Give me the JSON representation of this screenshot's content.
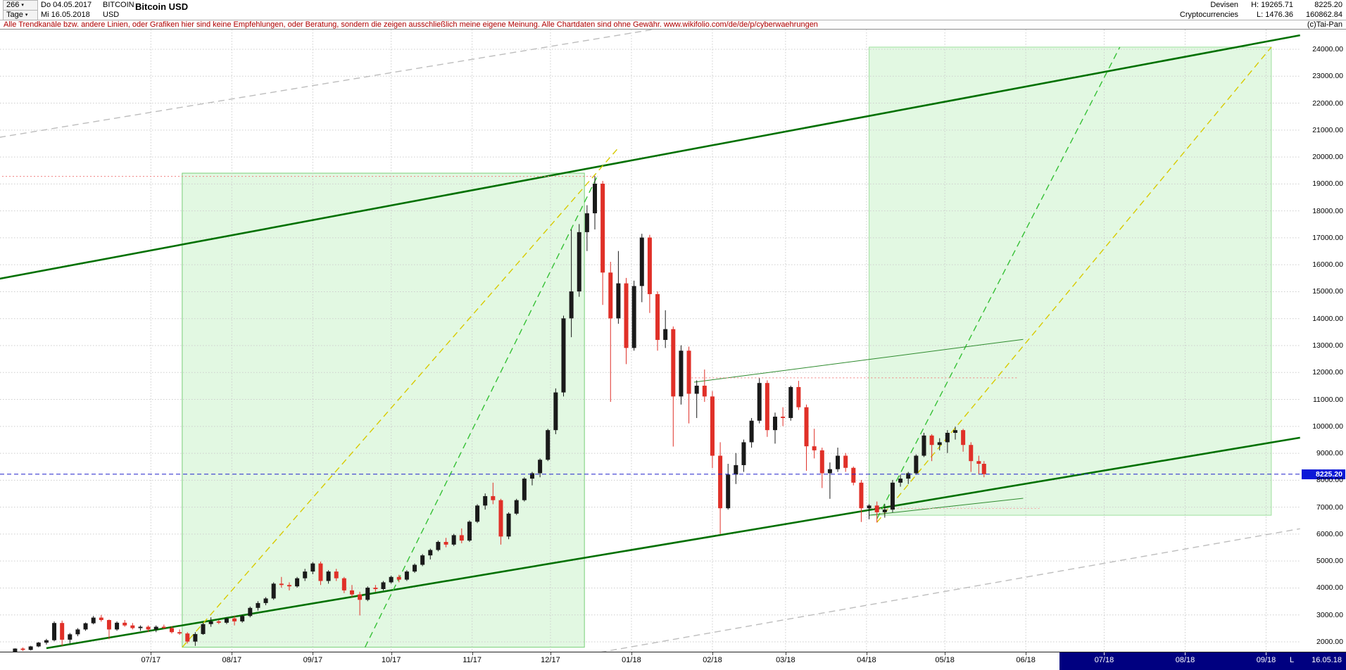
{
  "header": {
    "bars_count": "266",
    "dropdown_icon": "▾",
    "date_from": "Do 04.05.2017",
    "symbol": "BITCOIN",
    "period_label": "Tage",
    "date_to": "Mi 16.05.2018",
    "currency": "USD",
    "title": "Bitcoin USD",
    "category_line1": "Devisen",
    "category_line2": "Cryptocurrencies",
    "high_label": "H: 19265.71",
    "low_label": "L: 1476.36",
    "last_price": "8225.20",
    "volume": "160862.84"
  },
  "disclaimer": {
    "text": "Alle Trendkanäle bzw. andere Linien, oder Grafiken hier sind keine Empfehlungen, oder Beratung, sondern die zeigen ausschließlich meine eigene Meinung. Alle Chartdaten sind ohne Gewähr.  www.wikifolio.com/de/de/p/cyberwaehrungen",
    "copyright": "(c)Tai-Pan"
  },
  "price_axis": {
    "labels": [
      "24000.00",
      "23000.00",
      "22000.00",
      "21000.00",
      "20000.00",
      "19000.00",
      "18000.00",
      "17000.00",
      "16000.00",
      "15000.00",
      "14000.00",
      "13000.00",
      "12000.00",
      "11000.00",
      "10000.00",
      "9000.00",
      "8000.00",
      "7000.00",
      "6000.00",
      "5000.00",
      "4000.00",
      "3000.00",
      "2000.00"
    ],
    "badge": "8225.20",
    "badge_value": 8225.2,
    "badge_color": "#0b18d8"
  },
  "time_axis": {
    "months": [
      {
        "label": "07/17",
        "day": 61
      },
      {
        "label": "08/17",
        "day": 92
      },
      {
        "label": "09/17",
        "day": 123
      },
      {
        "label": "10/17",
        "day": 153
      },
      {
        "label": "11/17",
        "day": 184
      },
      {
        "label": "12/17",
        "day": 214
      },
      {
        "label": "01/18",
        "day": 245
      },
      {
        "label": "02/18",
        "day": 276
      },
      {
        "label": "03/18",
        "day": 304
      },
      {
        "label": "04/18",
        "day": 335
      },
      {
        "label": "05/18",
        "day": 365
      },
      {
        "label": "06/18",
        "day": 396
      },
      {
        "label": "07/18",
        "day": 426
      },
      {
        "label": "08/18",
        "day": 457
      },
      {
        "label": "09/18",
        "day": 488
      }
    ],
    "future_strip_start_day": 409,
    "strip_color": "#000080",
    "last_marker": "L",
    "last_date_label": "16.05.18"
  },
  "chart_data": {
    "type": "candlestick",
    "title": "Bitcoin USD",
    "timeframe": "Tage (daily)",
    "x_unit": "days since 2017-05-01",
    "date_range": [
      "04.05.2017",
      "16.05.2018"
    ],
    "ylim": [
      1476.36,
      24000
    ],
    "period_high": 19265.71,
    "period_low": 1476.36,
    "last_close": 8225.2,
    "grid": true,
    "up_color": "#1a1a1a",
    "down_color": "#e03028",
    "candles": [
      [
        3,
        1500,
        1560,
        1476,
        1540
      ],
      [
        6,
        1540,
        1620,
        1500,
        1600
      ],
      [
        9,
        1600,
        1760,
        1580,
        1750
      ],
      [
        12,
        1750,
        1790,
        1660,
        1700
      ],
      [
        15,
        1700,
        1850,
        1680,
        1830
      ],
      [
        18,
        1830,
        2000,
        1800,
        1970
      ],
      [
        21,
        1970,
        2110,
        1900,
        2060
      ],
      [
        24,
        2060,
        2760,
        2020,
        2700
      ],
      [
        27,
        2700,
        2790,
        1850,
        2080
      ],
      [
        30,
        2080,
        2330,
        1950,
        2280
      ],
      [
        33,
        2280,
        2510,
        2210,
        2460
      ],
      [
        36,
        2460,
        2720,
        2410,
        2690
      ],
      [
        39,
        2690,
        2960,
        2650,
        2900
      ],
      [
        42,
        2900,
        3000,
        2750,
        2810
      ],
      [
        45,
        2810,
        2830,
        2100,
        2460
      ],
      [
        48,
        2460,
        2760,
        2410,
        2710
      ],
      [
        51,
        2710,
        2810,
        2560,
        2610
      ],
      [
        54,
        2610,
        2700,
        2460,
        2510
      ],
      [
        57,
        2510,
        2610,
        2410,
        2560
      ],
      [
        60,
        2560,
        2610,
        2360,
        2460
      ],
      [
        63,
        2460,
        2610,
        2360,
        2560
      ],
      [
        66,
        2560,
        2640,
        2480,
        2510
      ],
      [
        69,
        2510,
        2580,
        2310,
        2360
      ],
      [
        72,
        2360,
        2460,
        2260,
        2310
      ],
      [
        75,
        2310,
        2360,
        1940,
        2010
      ],
      [
        78,
        2010,
        2360,
        1850,
        2290
      ],
      [
        81,
        2290,
        2710,
        2260,
        2660
      ],
      [
        84,
        2660,
        2910,
        2560,
        2760
      ],
      [
        87,
        2760,
        2810,
        2660,
        2710
      ],
      [
        90,
        2710,
        2910,
        2660,
        2870
      ],
      [
        93,
        2870,
        2960,
        2610,
        2760
      ],
      [
        96,
        2760,
        3010,
        2710,
        2960
      ],
      [
        99,
        2960,
        3310,
        2910,
        3260
      ],
      [
        102,
        3260,
        3510,
        3160,
        3440
      ],
      [
        105,
        3440,
        3660,
        3360,
        3610
      ],
      [
        108,
        3610,
        4210,
        3560,
        4160
      ],
      [
        111,
        4160,
        4410,
        4010,
        4110
      ],
      [
        114,
        4110,
        4210,
        3910,
        4060
      ],
      [
        117,
        4060,
        4410,
        4010,
        4360
      ],
      [
        120,
        4360,
        4710,
        4260,
        4610
      ],
      [
        123,
        4610,
        4960,
        4510,
        4910
      ],
      [
        126,
        4910,
        4980,
        4110,
        4260
      ],
      [
        129,
        4260,
        4660,
        4160,
        4610
      ],
      [
        132,
        4610,
        4710,
        4260,
        4360
      ],
      [
        135,
        4360,
        4410,
        3810,
        3910
      ],
      [
        138,
        3910,
        4110,
        3660,
        3760
      ],
      [
        141,
        3760,
        3860,
        2980,
        3560
      ],
      [
        144,
        3560,
        4060,
        3510,
        4010
      ],
      [
        147,
        4010,
        4110,
        3860,
        3960
      ],
      [
        150,
        3960,
        4260,
        3910,
        4210
      ],
      [
        153,
        4210,
        4460,
        4160,
        4410
      ],
      [
        156,
        4410,
        4490,
        4210,
        4310
      ],
      [
        159,
        4310,
        4660,
        4260,
        4610
      ],
      [
        162,
        4610,
        4910,
        4560,
        4860
      ],
      [
        165,
        4860,
        5260,
        4810,
        5210
      ],
      [
        168,
        5210,
        5460,
        5060,
        5410
      ],
      [
        171,
        5410,
        5760,
        5360,
        5710
      ],
      [
        174,
        5710,
        5860,
        5510,
        5610
      ],
      [
        177,
        5610,
        6010,
        5560,
        5960
      ],
      [
        180,
        5960,
        6210,
        5660,
        5760
      ],
      [
        183,
        5760,
        6510,
        5710,
        6460
      ],
      [
        186,
        6460,
        7110,
        6410,
        7060
      ],
      [
        189,
        7060,
        7510,
        6910,
        7410
      ],
      [
        192,
        7410,
        7910,
        7110,
        7260
      ],
      [
        195,
        7260,
        7310,
        5610,
        5910
      ],
      [
        198,
        5910,
        6810,
        5810,
        6760
      ],
      [
        201,
        6760,
        7310,
        6710,
        7260
      ],
      [
        204,
        7260,
        8110,
        7210,
        8060
      ],
      [
        207,
        8060,
        8310,
        7810,
        8260
      ],
      [
        210,
        8260,
        8810,
        8110,
        8760
      ],
      [
        213,
        8760,
        9910,
        8710,
        9860
      ],
      [
        216,
        9860,
        11410,
        9710,
        11260
      ],
      [
        219,
        11260,
        14110,
        11110,
        14010
      ],
      [
        222,
        14010,
        17310,
        13310,
        15010
      ],
      [
        225,
        15010,
        17510,
        14810,
        17210
      ],
      [
        228,
        17210,
        18210,
        16510,
        17910
      ],
      [
        231,
        17910,
        19290,
        17310,
        19010
      ],
      [
        234,
        19010,
        19110,
        14510,
        15710
      ],
      [
        237,
        15710,
        16110,
        10910,
        14010
      ],
      [
        240,
        14010,
        16510,
        13810,
        15310
      ],
      [
        243,
        15310,
        15510,
        12310,
        12910
      ],
      [
        246,
        12910,
        15410,
        12810,
        15210
      ],
      [
        249,
        15210,
        17150,
        14610,
        17010
      ],
      [
        252,
        17010,
        17110,
        14210,
        14910
      ],
      [
        255,
        14910,
        15010,
        12810,
        13210
      ],
      [
        258,
        13210,
        14310,
        12910,
        13610
      ],
      [
        261,
        13610,
        13710,
        9250,
        11110
      ],
      [
        264,
        11110,
        13010,
        10810,
        12810
      ],
      [
        267,
        12810,
        12960,
        10110,
        11210
      ],
      [
        270,
        11210,
        11710,
        10310,
        11510
      ],
      [
        273,
        11510,
        12110,
        10910,
        11110
      ],
      [
        276,
        11110,
        11310,
        8450,
        8910
      ],
      [
        279,
        8910,
        9410,
        6000,
        6960
      ],
      [
        282,
        6960,
        8610,
        6910,
        8210
      ],
      [
        285,
        8210,
        9010,
        7860,
        8560
      ],
      [
        288,
        8560,
        9510,
        8310,
        9410
      ],
      [
        291,
        9410,
        10310,
        9210,
        10210
      ],
      [
        294,
        10210,
        11790,
        10110,
        11610
      ],
      [
        297,
        11610,
        11710,
        9610,
        9860
      ],
      [
        300,
        9860,
        10510,
        9360,
        10360
      ],
      [
        303,
        10360,
        10710,
        10010,
        10310
      ],
      [
        306,
        10310,
        11510,
        10210,
        11460
      ],
      [
        309,
        11460,
        11690,
        10610,
        10710
      ],
      [
        312,
        10710,
        10810,
        8350,
        9260
      ],
      [
        315,
        9260,
        9910,
        8810,
        9110
      ],
      [
        318,
        9110,
        9210,
        7710,
        8260
      ],
      [
        321,
        8260,
        8660,
        7310,
        8410
      ],
      [
        324,
        8410,
        9210,
        8310,
        8910
      ],
      [
        327,
        8910,
        9010,
        8310,
        8460
      ],
      [
        330,
        8460,
        8510,
        7810,
        7910
      ],
      [
        333,
        7910,
        8010,
        6450,
        6960
      ],
      [
        336,
        6960,
        7110,
        6550,
        7060
      ],
      [
        339,
        7060,
        7210,
        6430,
        6810
      ],
      [
        342,
        6810,
        7110,
        6610,
        6910
      ],
      [
        345,
        6910,
        8010,
        6810,
        7910
      ],
      [
        348,
        7910,
        8210,
        7760,
        8060
      ],
      [
        351,
        8060,
        8310,
        7860,
        8260
      ],
      [
        354,
        8260,
        8960,
        8210,
        8910
      ],
      [
        357,
        8910,
        9760,
        8860,
        9660
      ],
      [
        360,
        9660,
        9710,
        8710,
        9310
      ],
      [
        363,
        9310,
        9560,
        9110,
        9410
      ],
      [
        366,
        9410,
        9860,
        9010,
        9760
      ],
      [
        369,
        9760,
        9990,
        9510,
        9860
      ],
      [
        372,
        9860,
        9910,
        9060,
        9310
      ],
      [
        375,
        9310,
        9410,
        8310,
        8710
      ],
      [
        378,
        8710,
        8910,
        8210,
        8610
      ],
      [
        380,
        8610,
        8710,
        8110,
        8225
      ]
    ],
    "annotations": {
      "regions": [
        {
          "name": "uptrend-zone-2017",
          "d1": 73,
          "d2": 227,
          "p1": 1800,
          "p2": 19400,
          "fill": "rgba(150,230,150,0.28)",
          "stroke": "#79cf79"
        },
        {
          "name": "uptrend-zone-2018",
          "d1": 336,
          "d2": 490,
          "p1": 6700,
          "p2": 24080,
          "fill": "rgba(150,230,150,0.28)",
          "stroke": "#9fdf9f"
        }
      ],
      "lines": [
        {
          "name": "major-channel-upper",
          "d1": 3,
          "p1": 15480,
          "d2": 501,
          "p2": 24520,
          "color": "#007000",
          "width": 2.6,
          "style": "solid"
        },
        {
          "name": "major-channel-lower",
          "d1": 21,
          "p1": 1765,
          "d2": 501,
          "p2": 9580,
          "color": "#007000",
          "width": 2.6,
          "style": "solid"
        },
        {
          "name": "gray-channel-upper",
          "d1": 3,
          "p1": 20730,
          "d2": 253,
          "p2": 24730,
          "color": "#bdbdbd",
          "width": 1.4,
          "style": "dashed"
        },
        {
          "name": "gray-channel-lower",
          "d1": 233,
          "p1": 1610,
          "d2": 501,
          "p2": 6200,
          "color": "#bdbdbd",
          "width": 1.4,
          "style": "dashed"
        },
        {
          "name": "yellow-accel-2017",
          "d1": 73,
          "p1": 1800,
          "d2": 240,
          "p2": 20340,
          "color": "#d8ca00",
          "width": 1.4,
          "style": "dashed"
        },
        {
          "name": "green-accel-2017",
          "d1": 143,
          "p1": 1800,
          "d2": 232,
          "p2": 19300,
          "color": "#35c035",
          "width": 1.4,
          "style": "dashed"
        },
        {
          "name": "green-accel-2018",
          "d1": 339,
          "p1": 6570,
          "d2": 432,
          "p2": 24080,
          "color": "#35c035",
          "width": 1.4,
          "style": "dashed"
        },
        {
          "name": "yellow-accel-2018",
          "d1": 339,
          "p1": 6440,
          "d2": 490,
          "p2": 24080,
          "color": "#d8ca00",
          "width": 1.4,
          "style": "dashed"
        },
        {
          "name": "minor-resistance-rising",
          "d1": 269,
          "p1": 11640,
          "d2": 395,
          "p2": 13230,
          "color": "#2e8b2e",
          "width": 1,
          "style": "solid"
        },
        {
          "name": "minor-support-rising",
          "d1": 336,
          "p1": 6700,
          "d2": 395,
          "p2": 7330,
          "color": "#2e8b2e",
          "width": 1,
          "style": "solid"
        },
        {
          "name": "resistance-19280",
          "d1": 0,
          "p1": 19280,
          "d2": 232,
          "p2": 19280,
          "color": "#f08080",
          "width": 1,
          "style": "dotted"
        },
        {
          "name": "resistance-11800",
          "d1": 268,
          "p1": 11800,
          "d2": 393,
          "p2": 11800,
          "color": "#f08080",
          "width": 1,
          "style": "dotted"
        },
        {
          "name": "support-6950",
          "d1": 336,
          "p1": 6950,
          "d2": 402,
          "p2": 6950,
          "color": "#f4a6a6",
          "width": 1,
          "style": "dotted"
        }
      ],
      "current_price": {
        "price": 8225.2,
        "color": "#2222cc",
        "style": "dashed"
      }
    }
  }
}
